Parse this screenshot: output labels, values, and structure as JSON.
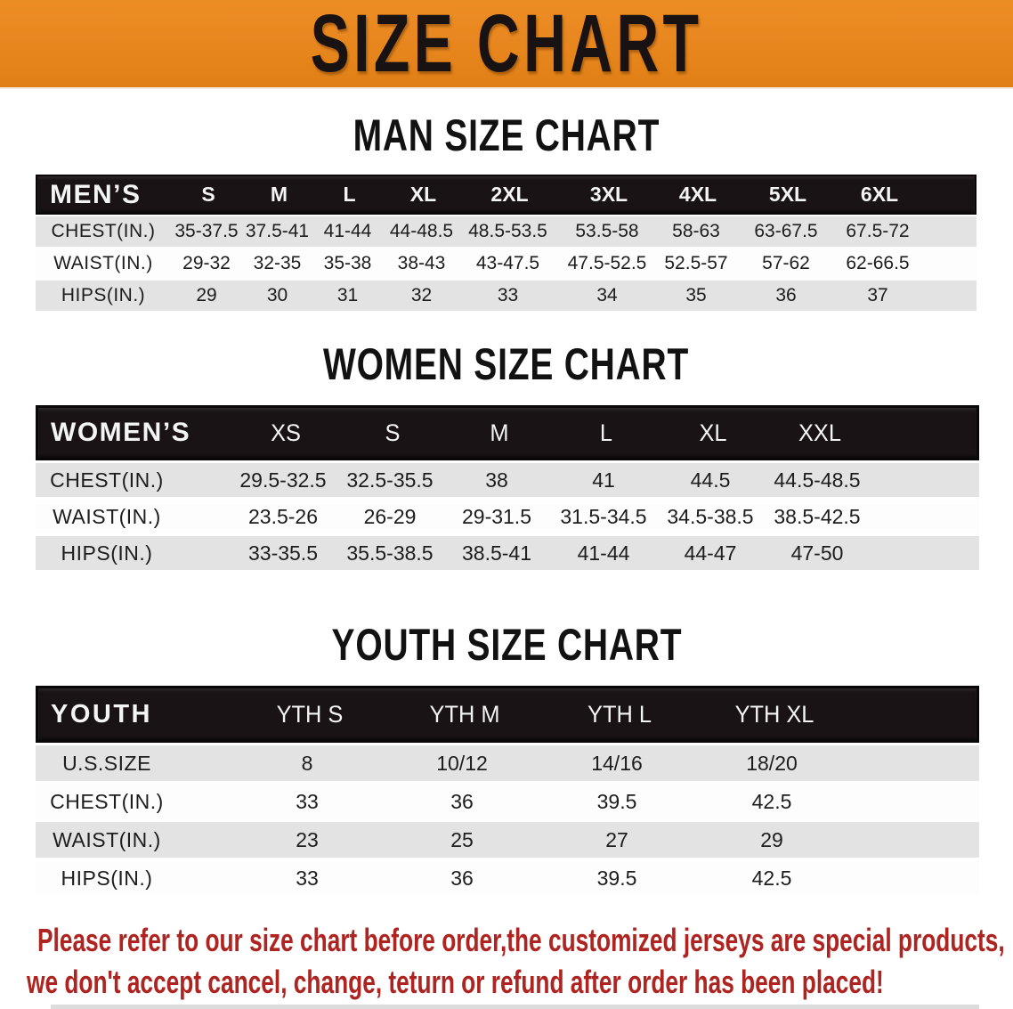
{
  "banner": {
    "title": "SIZE CHART",
    "bg_color": "#e8861e",
    "text_color": "#181213"
  },
  "sections": {
    "men": {
      "title": "MAN SIZE CHART",
      "corner_label": "MEN’S",
      "sizes": [
        "S",
        "M",
        "L",
        "XL",
        "2XL",
        "3XL",
        "4XL",
        "5XL",
        "6XL"
      ],
      "rows": [
        {
          "label": "CHEST(IN.)",
          "values": [
            "35-37.5",
            "37.5-41",
            "41-44",
            "44-48.5",
            "48.5-53.5",
            "53.5-58",
            "58-63",
            "63-67.5",
            "67.5-72"
          ]
        },
        {
          "label": "WAIST(IN.)",
          "values": [
            "29-32",
            "32-35",
            "35-38",
            "38-43",
            "43-47.5",
            "47.5-52.5",
            "52.5-57",
            "57-62",
            "62-66.5"
          ]
        },
        {
          "label": "HIPS(IN.)",
          "values": [
            "29",
            "30",
            "31",
            "32",
            "33",
            "34",
            "35",
            "36",
            "37"
          ]
        }
      ]
    },
    "women": {
      "title": "WOMEN SIZE CHART",
      "corner_label": "WOMEN’S",
      "sizes": [
        "XS",
        "S",
        "M",
        "L",
        "XL",
        "XXL"
      ],
      "rows": [
        {
          "label": "CHEST(IN.)",
          "values": [
            "29.5-32.5",
            "32.5-35.5",
            "38",
            "41",
            "44.5",
            "44.5-48.5"
          ]
        },
        {
          "label": "WAIST(IN.)",
          "values": [
            "23.5-26",
            "26-29",
            "29-31.5",
            "31.5-34.5",
            "34.5-38.5",
            "38.5-42.5"
          ]
        },
        {
          "label": "HIPS(IN.)",
          "values": [
            "33-35.5",
            "35.5-38.5",
            "38.5-41",
            "41-44",
            "44-47",
            "47-50"
          ]
        }
      ]
    },
    "youth": {
      "title": "YOUTH SIZE CHART",
      "corner_label": "YOUTH",
      "sizes": [
        "YTH S",
        "YTH M",
        "YTH L",
        "YTH XL"
      ],
      "rows": [
        {
          "label": "U.S.SIZE",
          "values": [
            "8",
            "10/12",
            "14/16",
            "18/20"
          ]
        },
        {
          "label": "CHEST(IN.)",
          "values": [
            "33",
            "36",
            "39.5",
            "42.5"
          ]
        },
        {
          "label": "WAIST(IN.)",
          "values": [
            "23",
            "25",
            "27",
            "29"
          ]
        },
        {
          "label": "HIPS(IN.)",
          "values": [
            "33",
            "36",
            "39.5",
            "42.5"
          ]
        }
      ]
    }
  },
  "disclaimer": {
    "line1": "Please refer to our size chart before order,the customized jerseys are special products,",
    "line2": "we don't accept cancel, change, teturn or refund after order has been placed!",
    "color": "#ae2420"
  }
}
